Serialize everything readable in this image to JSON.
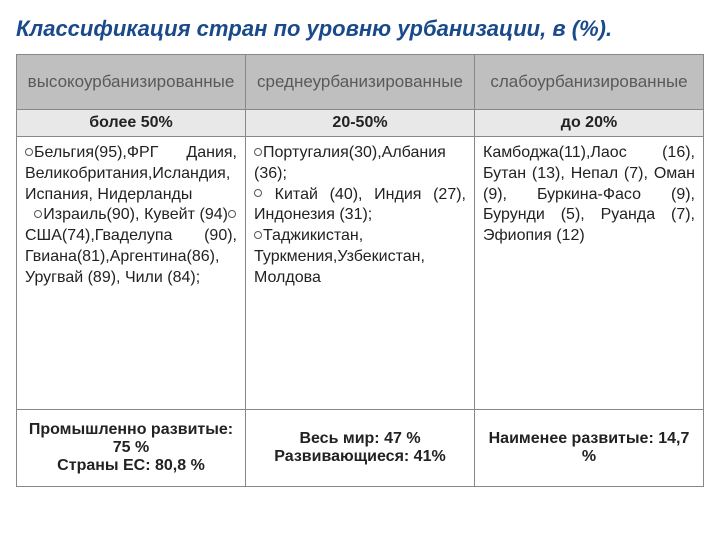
{
  "title": "Классификация стран по уровню урбанизации,  в (%).",
  "table": {
    "columns": [
      {
        "header": "высокоурбанизированные",
        "sub": "более 50%",
        "width": "33.3%"
      },
      {
        "header": "среднеурбанизированные",
        "sub": "20-50%",
        "width": "33.3%"
      },
      {
        "header": "слабоурбанизированные",
        "sub": "до 20%",
        "width": "33.3%"
      }
    ],
    "cells": {
      "c0": "Бельгия(95),ФРГ Дания, Великобритания,Исландия, Испания, Нидерланды",
      "c0b": "Израиль(90), Кувейт (94)",
      "c0c": "США(74),Гваделупа (90), Гвиана(81),Аргентина(86), Уругвай (89), Чили (84);",
      "c1a": "Португалия(30),Албания (36);",
      "c1b": " Китай (40), Индия (27), Индонезия (31);",
      "c1c": "Таджикистан, Туркмения,Узбекистан, Молдова",
      "c2": "Камбоджа(11),Лаос (16), Бутан (13), Непал (7), Оман (9), Буркина-Фасо (9), Бурунди (5), Руанда (7), Эфиопия (12)"
    },
    "footer": {
      "f0a": "Промышленно развитые: 75 %",
      "f0b": "Страны ЕС: 80,8 %",
      "f1a": "Весь мир: 47 %",
      "f1b": "Развивающиеся: 41%",
      "f2": "Наименее развитые: 14,7 %"
    }
  },
  "colors": {
    "title": "#1a4a8a",
    "header_bg": "#bfbfbf",
    "subheader_bg": "#e8e8e8",
    "border": "#888888",
    "body_bg": "#ffffff"
  }
}
